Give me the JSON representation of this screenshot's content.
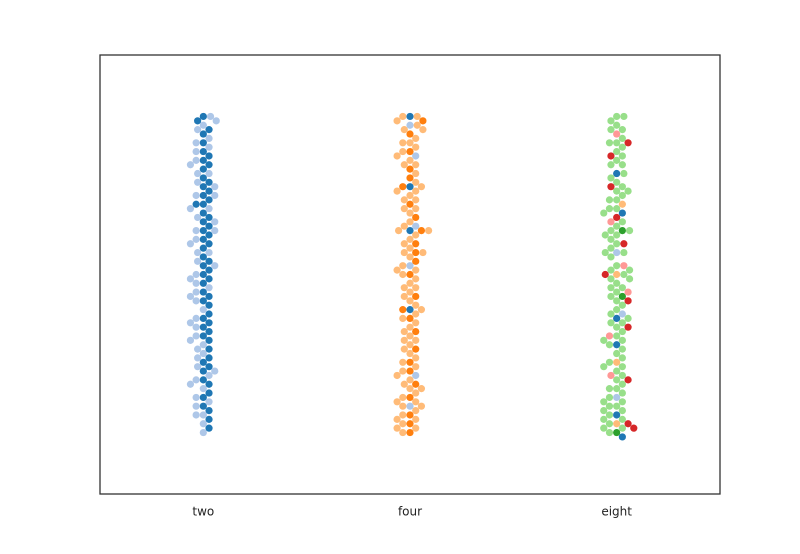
{
  "chart_data": {
    "type": "swarm",
    "categories": [
      "two",
      "four",
      "eight"
    ],
    "ylim": [
      0,
      1
    ],
    "series": [
      {
        "color": "#1f77b4",
        "values": [
          [
            0.15,
            0.17,
            0.19,
            0.2,
            0.23,
            0.25,
            0.26,
            0.28,
            0.3,
            0.31,
            0.33,
            0.35,
            0.37,
            0.38,
            0.4,
            0.41,
            0.43,
            0.45,
            0.46,
            0.48,
            0.5,
            0.51,
            0.53,
            0.54,
            0.56,
            0.58,
            0.59,
            0.61,
            0.62,
            0.64,
            0.66,
            0.67,
            0.69,
            0.7,
            0.72,
            0.74,
            0.75,
            0.77,
            0.78,
            0.8,
            0.82,
            0.83,
            0.85,
            0.86,
            0.36,
            0.52,
            0.63,
            0.71,
            0.44,
            0.29,
            0.57,
            0.66,
            0.22,
            0.6,
            0.49,
            0.39,
            0.68,
            0.76
          ],
          [
            0.86,
            0.7,
            0.42,
            0.6
          ],
          [
            0.18,
            0.4,
            0.73,
            0.64,
            0.34,
            0.13
          ]
        ]
      },
      {
        "color": "#aec7e8",
        "values": [
          [
            0.14,
            0.16,
            0.18,
            0.21,
            0.22,
            0.24,
            0.27,
            0.29,
            0.32,
            0.34,
            0.36,
            0.39,
            0.42,
            0.44,
            0.47,
            0.49,
            0.52,
            0.55,
            0.57,
            0.6,
            0.63,
            0.65,
            0.68,
            0.71,
            0.73,
            0.76,
            0.79,
            0.81,
            0.84,
            0.86,
            0.2,
            0.31,
            0.4,
            0.5,
            0.6,
            0.7,
            0.8,
            0.25,
            0.45,
            0.65,
            0.85,
            0.35,
            0.55,
            0.75,
            0.18,
            0.28,
            0.38,
            0.48,
            0.58,
            0.68,
            0.78,
            0.83,
            0.26,
            0.46,
            0.62,
            0.73,
            0.33,
            0.53
          ],
          [
            0.84,
            0.52,
            0.27,
            0.61,
            0.77,
            0.2
          ],
          [
            0.55,
            0.41,
            0.22
          ]
        ]
      },
      {
        "color": "#ff7f0e",
        "values": [
          [],
          [
            0.14,
            0.18,
            0.22,
            0.25,
            0.3,
            0.33,
            0.37,
            0.42,
            0.45,
            0.5,
            0.53,
            0.57,
            0.6,
            0.63,
            0.66,
            0.7,
            0.74,
            0.78,
            0.82,
            0.85,
            0.16,
            0.4,
            0.55,
            0.72,
            0.28
          ],
          []
        ]
      },
      {
        "color": "#ffbb78",
        "values": [
          [],
          [
            0.14,
            0.15,
            0.16,
            0.17,
            0.18,
            0.19,
            0.2,
            0.21,
            0.22,
            0.23,
            0.24,
            0.26,
            0.27,
            0.28,
            0.29,
            0.31,
            0.32,
            0.34,
            0.35,
            0.36,
            0.38,
            0.39,
            0.41,
            0.43,
            0.44,
            0.46,
            0.47,
            0.48,
            0.49,
            0.51,
            0.52,
            0.54,
            0.55,
            0.56,
            0.58,
            0.59,
            0.61,
            0.62,
            0.64,
            0.65,
            0.67,
            0.68,
            0.69,
            0.71,
            0.73,
            0.75,
            0.76,
            0.77,
            0.79,
            0.8,
            0.81,
            0.83,
            0.84,
            0.86,
            0.86,
            0.15,
            0.2,
            0.25,
            0.3,
            0.35,
            0.4,
            0.45,
            0.5,
            0.55,
            0.6,
            0.65,
            0.7,
            0.75,
            0.8,
            0.85,
            0.17,
            0.24,
            0.33,
            0.42,
            0.51,
            0.6,
            0.69,
            0.78,
            0.21,
            0.37,
            0.47,
            0.57,
            0.67,
            0.83
          ],
          [
            0.16,
            0.5,
            0.66,
            0.3
          ]
        ]
      },
      {
        "color": "#2ca02c",
        "values": [
          [],
          [],
          [
            0.14,
            0.45,
            0.6
          ]
        ]
      },
      {
        "color": "#98df8a",
        "values": [
          [],
          [],
          [
            0.14,
            0.15,
            0.16,
            0.17,
            0.18,
            0.19,
            0.2,
            0.21,
            0.22,
            0.23,
            0.24,
            0.26,
            0.27,
            0.28,
            0.29,
            0.31,
            0.32,
            0.34,
            0.35,
            0.36,
            0.38,
            0.39,
            0.41,
            0.43,
            0.44,
            0.46,
            0.47,
            0.48,
            0.49,
            0.51,
            0.52,
            0.54,
            0.55,
            0.56,
            0.58,
            0.59,
            0.61,
            0.62,
            0.64,
            0.65,
            0.67,
            0.68,
            0.69,
            0.71,
            0.73,
            0.75,
            0.76,
            0.77,
            0.79,
            0.8,
            0.81,
            0.83,
            0.84,
            0.86,
            0.86,
            0.15,
            0.2,
            0.25,
            0.3,
            0.35,
            0.4,
            0.45,
            0.5,
            0.55,
            0.6,
            0.65,
            0.7,
            0.75,
            0.8,
            0.85,
            0.17,
            0.24,
            0.33,
            0.42,
            0.51,
            0.6,
            0.69,
            0.78,
            0.21,
            0.37,
            0.47,
            0.57,
            0.67,
            0.83,
            0.19,
            0.29,
            0.39,
            0.49,
            0.59,
            0.72
          ]
        ]
      },
      {
        "color": "#d62728",
        "values": [
          [],
          [],
          [
            0.16,
            0.26,
            0.38,
            0.44,
            0.5,
            0.57,
            0.63,
            0.7,
            0.77,
            0.8,
            0.15
          ]
        ]
      },
      {
        "color": "#ff9896",
        "values": [
          [],
          [],
          [
            0.27,
            0.36,
            0.46,
            0.52,
            0.62,
            0.82
          ]
        ]
      }
    ]
  }
}
